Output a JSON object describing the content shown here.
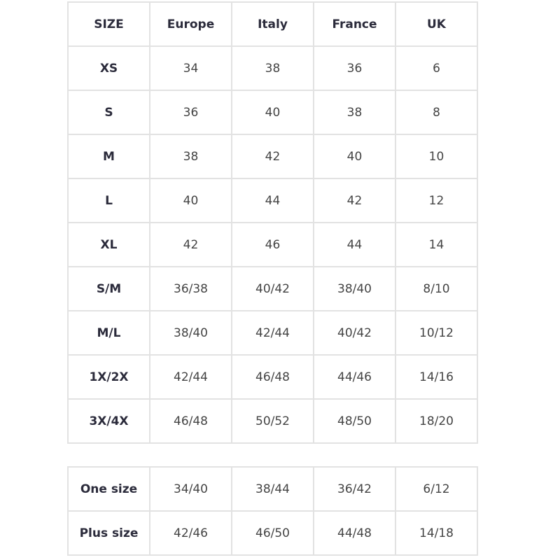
{
  "main_table": {
    "headers": [
      "SIZE",
      "Europe",
      "Italy",
      "France",
      "UK"
    ],
    "rows": [
      [
        "XS",
        "34",
        "38",
        "36",
        "6"
      ],
      [
        "S",
        "36",
        "40",
        "38",
        "8"
      ],
      [
        "M",
        "38",
        "42",
        "40",
        "10"
      ],
      [
        "L",
        "40",
        "44",
        "42",
        "12"
      ],
      [
        "XL",
        "42",
        "46",
        "44",
        "14"
      ],
      [
        "S/M",
        "36/38",
        "40/42",
        "38/40",
        "8/10"
      ],
      [
        "M/L",
        "38/40",
        "42/44",
        "40/42",
        "10/12"
      ],
      [
        "1X/2X",
        "42/44",
        "46/48",
        "44/46",
        "14/16"
      ],
      [
        "3X/4X",
        "46/48",
        "50/52",
        "48/50",
        "18/20"
      ]
    ]
  },
  "extra_table": {
    "rows": [
      [
        "One size",
        "34/40",
        "38/44",
        "36/42",
        "6/12"
      ],
      [
        "Plus size",
        "42/46",
        "46/50",
        "44/48",
        "14/18"
      ]
    ]
  }
}
